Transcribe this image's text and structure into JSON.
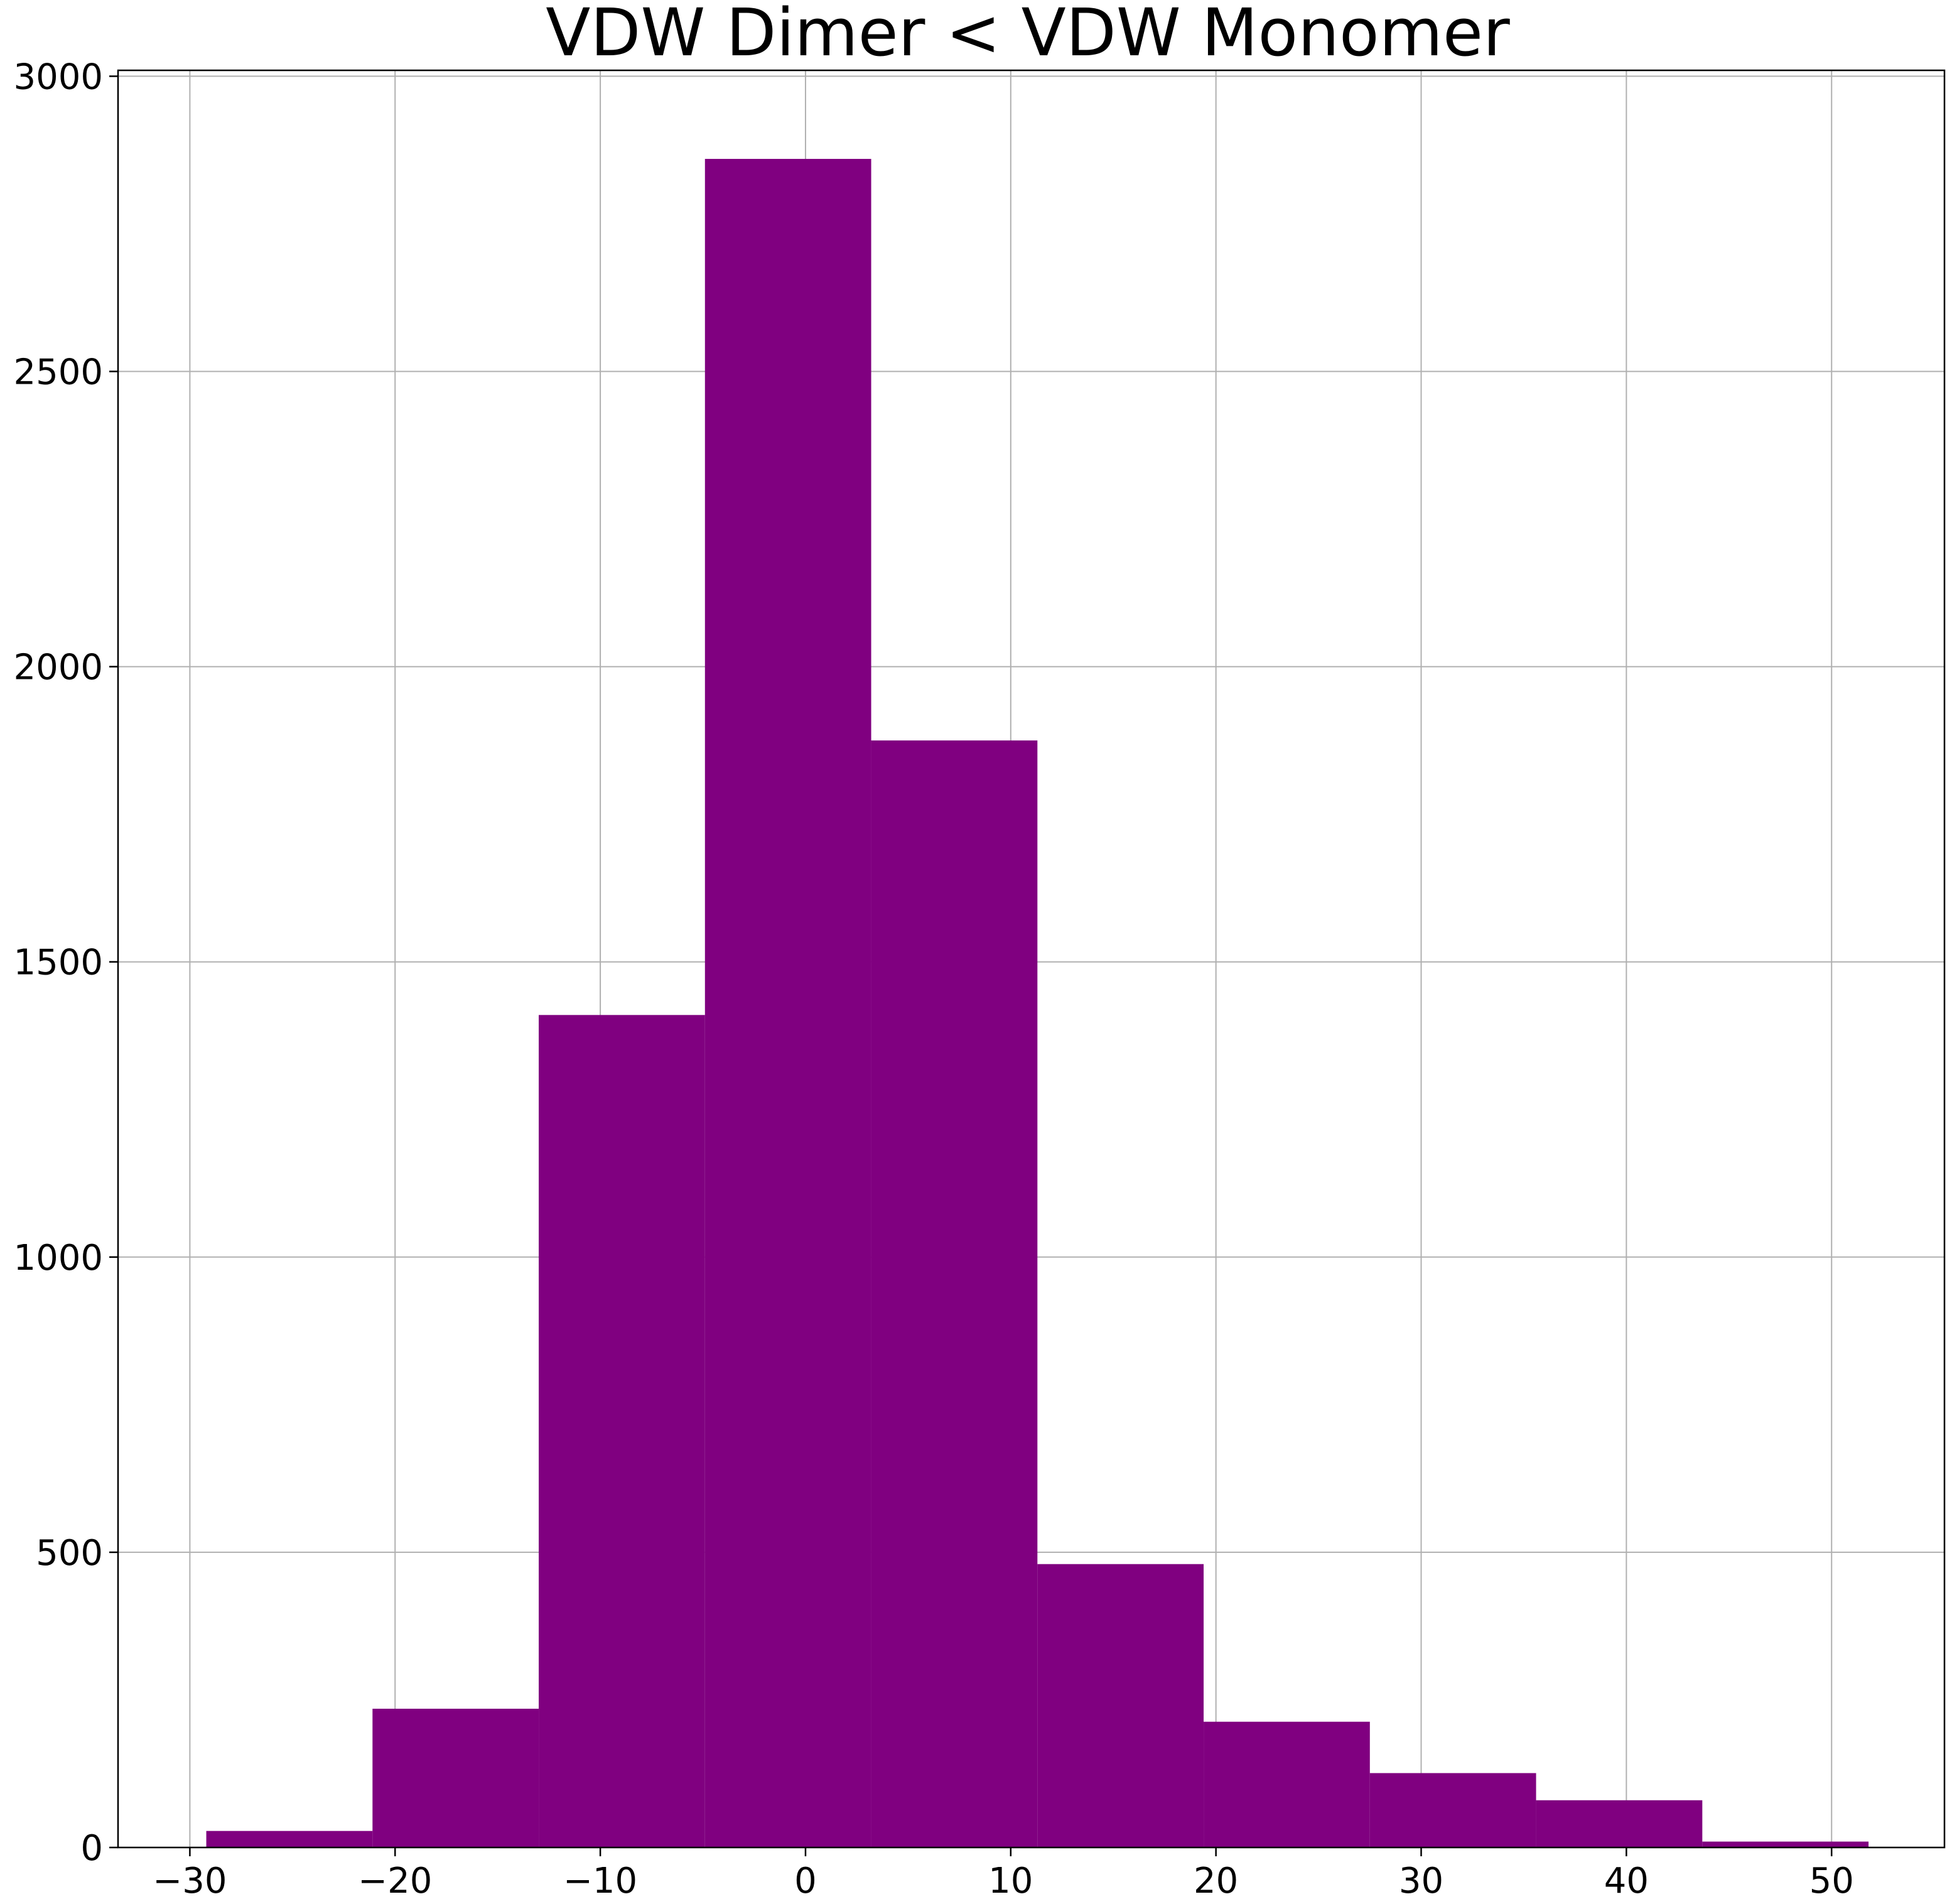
{
  "chart_data": {
    "type": "bar",
    "subtype": "histogram",
    "title": "VDW Dimer < VDW Monomer",
    "xlabel": "",
    "ylabel": "",
    "bin_edges": [
      -29.2,
      -21.1,
      -13.0,
      -4.9,
      3.2,
      11.3,
      19.4,
      27.5,
      35.6,
      43.7,
      51.8
    ],
    "values": [
      28,
      235,
      1410,
      2860,
      1875,
      480,
      213,
      126,
      80,
      10
    ],
    "xlim": [
      -33.5,
      55.5
    ],
    "ylim": [
      0,
      3010
    ],
    "xticks": [
      -30,
      -20,
      -10,
      0,
      10,
      20,
      30,
      40,
      50
    ],
    "xtick_labels": [
      "−30",
      "−20",
      "−10",
      "0",
      "10",
      "20",
      "30",
      "40",
      "50"
    ],
    "yticks": [
      0,
      500,
      1000,
      1500,
      2000,
      2500,
      3000
    ],
    "ytick_labels": [
      "0",
      "500",
      "1000",
      "1500",
      "2000",
      "2500",
      "3000"
    ],
    "grid": true,
    "legend": "none",
    "bar_color": "#800080",
    "grid_color": "#b0b0b0",
    "axis_color": "#000000"
  }
}
